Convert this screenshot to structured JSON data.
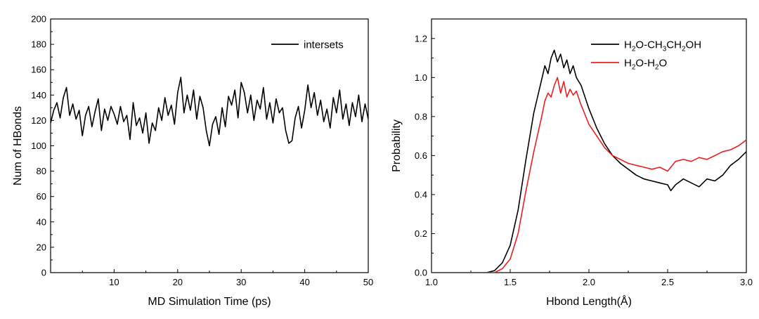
{
  "chart_data": [
    {
      "type": "line",
      "xlabel": "MD Simulation Time (ps)",
      "ylabel": "Num of HBonds",
      "xlim": [
        0,
        50
      ],
      "ylim": [
        0,
        200
      ],
      "xticks": [
        10,
        20,
        30,
        40,
        50
      ],
      "yticks": [
        0,
        20,
        40,
        60,
        80,
        100,
        120,
        140,
        160,
        180,
        200
      ],
      "grid": false,
      "legend_position": "top-right",
      "series": [
        {
          "name": "intersets",
          "color": "#000000",
          "x": [
            0,
            0.5,
            1,
            1.5,
            2,
            2.5,
            3,
            3.5,
            4,
            4.5,
            5,
            5.5,
            6,
            6.5,
            7,
            7.5,
            8,
            8.5,
            9,
            9.5,
            10,
            10.5,
            11,
            11.5,
            12,
            12.5,
            13,
            13.5,
            14,
            14.5,
            15,
            15.5,
            16,
            16.5,
            17,
            17.5,
            18,
            18.5,
            19,
            19.5,
            20,
            20.5,
            21,
            21.5,
            22,
            22.5,
            23,
            23.5,
            24,
            24.5,
            25,
            25.5,
            26,
            26.5,
            27,
            27.5,
            28,
            28.5,
            29,
            29.5,
            30,
            30.5,
            31,
            31.5,
            32,
            32.5,
            33,
            33.5,
            34,
            34.5,
            35,
            35.5,
            36,
            36.5,
            37,
            37.5,
            38,
            38.5,
            39,
            39.5,
            40,
            40.5,
            41,
            41.5,
            42,
            42.5,
            43,
            43.5,
            44,
            44.5,
            45,
            45.5,
            46,
            46.5,
            47,
            47.5,
            48,
            48.5,
            49,
            49.5,
            50
          ],
          "y": [
            118,
            128,
            134,
            122,
            138,
            146,
            124,
            133,
            121,
            128,
            108,
            124,
            131,
            115,
            127,
            137,
            112,
            129,
            120,
            131,
            125,
            117,
            131,
            119,
            124,
            105,
            134,
            116,
            122,
            110,
            126,
            102,
            118,
            112,
            130,
            120,
            138,
            124,
            132,
            117,
            142,
            154,
            126,
            140,
            128,
            144,
            121,
            139,
            130,
            112,
            100,
            117,
            123,
            109,
            130,
            115,
            139,
            132,
            144,
            122,
            150,
            142,
            126,
            140,
            120,
            136,
            129,
            146,
            121,
            134,
            118,
            137,
            126,
            130,
            112,
            102,
            104,
            122,
            131,
            114,
            128,
            148,
            130,
            142,
            124,
            136,
            119,
            129,
            114,
            138,
            126,
            144,
            121,
            133,
            116,
            134,
            123,
            140,
            119,
            133,
            121
          ]
        }
      ]
    },
    {
      "type": "line",
      "xlabel": "Hbond Length(Å)",
      "ylabel": "Probability",
      "xlim": [
        1.0,
        3.0
      ],
      "ylim": [
        0,
        1.3
      ],
      "xticks": [
        1.0,
        1.5,
        2.0,
        2.5,
        3.0
      ],
      "yticks": [
        0.0,
        0.2,
        0.4,
        0.6,
        0.8,
        1.0,
        1.2
      ],
      "grid": false,
      "legend_position": "top-right",
      "series": [
        {
          "name": "H2O-CH3CH2OH",
          "legend_parts": [
            [
              "H",
              ""
            ],
            [
              "2",
              "sub"
            ],
            [
              "O-CH",
              ""
            ],
            [
              "3",
              "sub"
            ],
            [
              "CH",
              ""
            ],
            [
              "2",
              "sub"
            ],
            [
              "OH",
              ""
            ]
          ],
          "color": "#000000",
          "x": [
            1.0,
            1.35,
            1.4,
            1.45,
            1.5,
            1.55,
            1.6,
            1.65,
            1.7,
            1.72,
            1.74,
            1.76,
            1.78,
            1.8,
            1.82,
            1.84,
            1.86,
            1.88,
            1.9,
            1.92,
            1.95,
            2.0,
            2.05,
            2.1,
            2.15,
            2.2,
            2.25,
            2.3,
            2.35,
            2.4,
            2.45,
            2.5,
            2.52,
            2.55,
            2.6,
            2.65,
            2.7,
            2.75,
            2.8,
            2.85,
            2.9,
            2.95,
            3.0
          ],
          "y": [
            0.0,
            0.0,
            0.01,
            0.05,
            0.14,
            0.32,
            0.58,
            0.82,
            0.99,
            1.06,
            1.02,
            1.1,
            1.14,
            1.08,
            1.12,
            1.05,
            1.09,
            1.02,
            1.06,
            1.0,
            0.96,
            0.84,
            0.74,
            0.66,
            0.6,
            0.56,
            0.53,
            0.5,
            0.48,
            0.47,
            0.46,
            0.45,
            0.42,
            0.45,
            0.48,
            0.46,
            0.44,
            0.48,
            0.47,
            0.5,
            0.55,
            0.58,
            0.62
          ]
        },
        {
          "name": "H2O-H2O",
          "legend_parts": [
            [
              "H",
              ""
            ],
            [
              "2",
              "sub"
            ],
            [
              "O-H",
              ""
            ],
            [
              "2",
              "sub"
            ],
            [
              "O",
              ""
            ]
          ],
          "color": "#e8201e",
          "x": [
            1.0,
            1.4,
            1.45,
            1.5,
            1.55,
            1.6,
            1.65,
            1.7,
            1.72,
            1.74,
            1.76,
            1.78,
            1.8,
            1.82,
            1.84,
            1.86,
            1.88,
            1.9,
            1.92,
            1.95,
            2.0,
            2.05,
            2.1,
            2.15,
            2.2,
            2.25,
            2.3,
            2.35,
            2.4,
            2.45,
            2.5,
            2.55,
            2.6,
            2.65,
            2.7,
            2.75,
            2.8,
            2.85,
            2.9,
            2.95,
            3.0
          ],
          "y": [
            0.0,
            0.0,
            0.02,
            0.07,
            0.2,
            0.42,
            0.62,
            0.8,
            0.88,
            0.92,
            0.9,
            0.96,
            1.0,
            0.92,
            0.98,
            0.9,
            0.94,
            0.91,
            0.93,
            0.86,
            0.76,
            0.7,
            0.64,
            0.6,
            0.58,
            0.56,
            0.55,
            0.54,
            0.53,
            0.54,
            0.52,
            0.57,
            0.58,
            0.57,
            0.59,
            0.58,
            0.6,
            0.62,
            0.63,
            0.65,
            0.68
          ]
        }
      ]
    }
  ]
}
